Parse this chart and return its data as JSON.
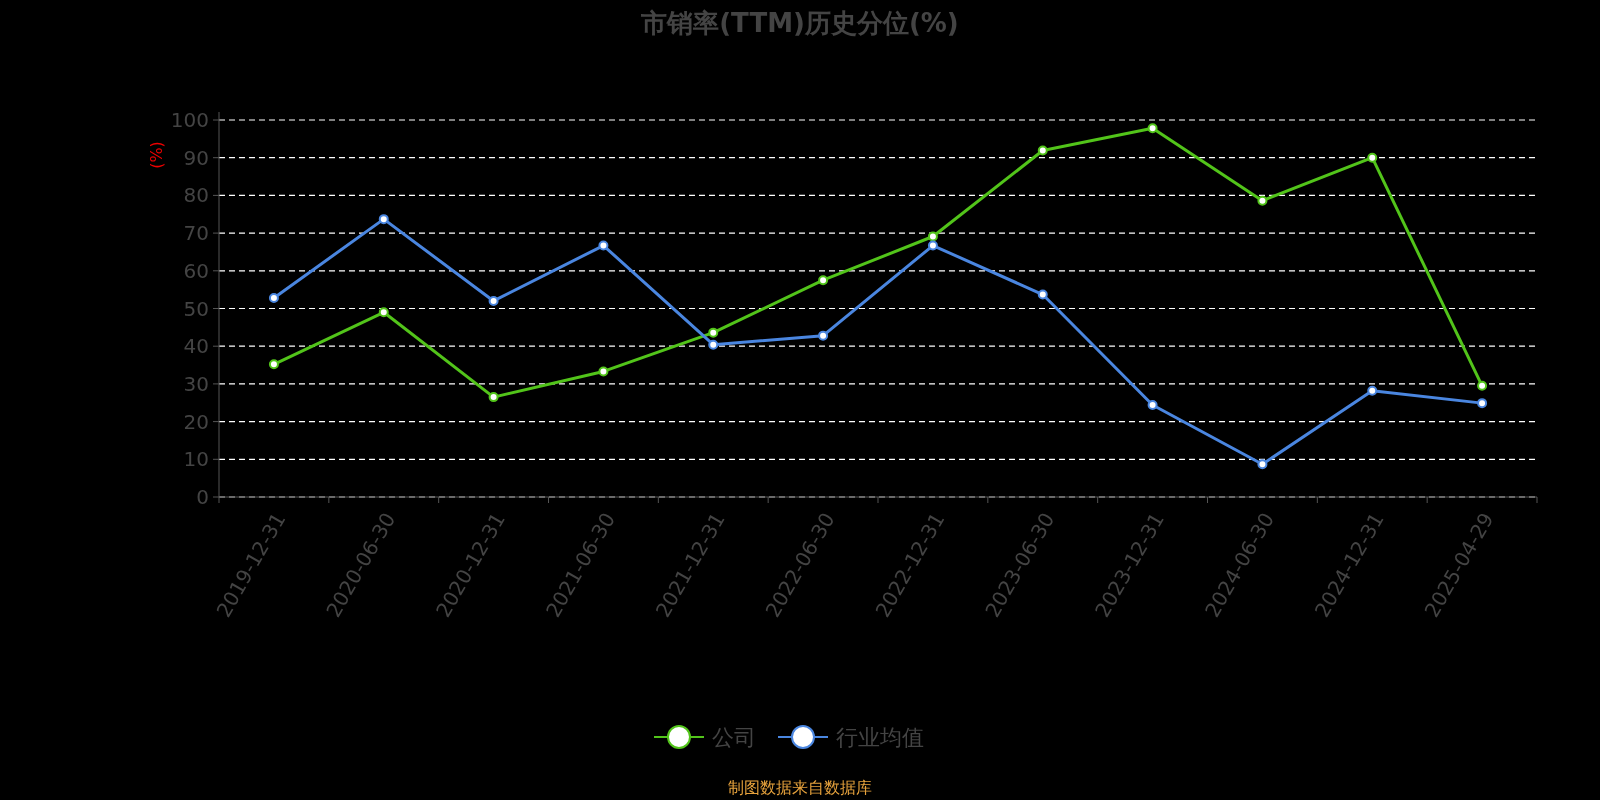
{
  "chart_data": {
    "type": "line",
    "title": "市销率(TTM)历史分位(%)",
    "ylabel": "(%)",
    "categories": [
      "2019-12-31",
      "2020-06-30",
      "2020-12-31",
      "2021-06-30",
      "2021-12-31",
      "2022-06-30",
      "2022-12-31",
      "2023-06-30",
      "2023-12-31",
      "2024-06-30",
      "2024-12-31",
      "2025-04-29"
    ],
    "series": [
      {
        "name": "公司",
        "color": "#52c41a",
        "values": [
          35.2,
          49,
          26.5,
          33.3,
          43.6,
          57.5,
          69.1,
          91.9,
          97.8,
          78.6,
          90,
          29.5
        ]
      },
      {
        "name": "行业均值",
        "color": "#4a86e0",
        "values": [
          52.8,
          73.7,
          52,
          66.7,
          40.4,
          42.8,
          66.7,
          53.7,
          24.4,
          8.7,
          28.2,
          24.9
        ]
      }
    ],
    "ylim": [
      0,
      100
    ],
    "yticks": [
      0,
      10,
      20,
      30,
      40,
      50,
      60,
      70,
      80,
      90,
      100
    ],
    "grid": "y",
    "legend": "bottom",
    "marker": "circle",
    "line_style": "solid",
    "annotations": [
      "制图数据来自数据库"
    ]
  }
}
